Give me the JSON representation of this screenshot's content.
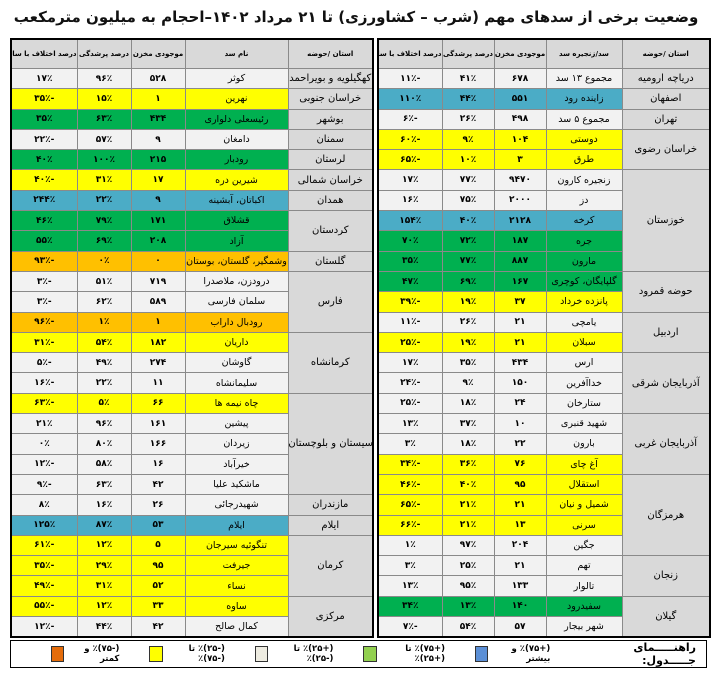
{
  "title": "وضعیت برخی از سدهای مهم (شرب – کشاورزی) تا ۲۱ مرداد ۱۴۰۲–احجام به میلیون مترمکعب",
  "right_table": {
    "headers": [
      "استان /حوضه",
      "سد/زنجیره سد",
      "موجودی مخزن",
      "درصد پرشدگی",
      "درصد اختلاف با سال قبل"
    ],
    "groups": [
      {
        "province": "دریاچه ارومیه",
        "rows": [
          {
            "dam": "مجموع ۱۳ سد",
            "volume": "۶۷۸",
            "fill": "۴۱٪",
            "diff": "-۱۱٪",
            "color": "g"
          }
        ]
      },
      {
        "province": "اصفهان",
        "rows": [
          {
            "dam": "زاینده رود",
            "volume": "۵۵۱",
            "fill": "۴۴٪",
            "diff": "۱۱۰٪",
            "color": "b"
          }
        ]
      },
      {
        "province": "تهران",
        "rows": [
          {
            "dam": "مجموع ۵ سد",
            "volume": "۴۹۸",
            "fill": "۲۶٪",
            "diff": "-۶٪",
            "color": "g"
          }
        ]
      },
      {
        "province": "خراسان رضوی",
        "rows": [
          {
            "dam": "دوستی",
            "volume": "۱۰۴",
            "fill": "۹٪",
            "diff": "-۶۰٪",
            "color": "y"
          },
          {
            "dam": "طرق",
            "volume": "۳",
            "fill": "۱۰٪",
            "diff": "-۶۵٪",
            "color": "y"
          }
        ]
      },
      {
        "province": "خوزستان",
        "rows": [
          {
            "dam": "زنجیره کارون",
            "volume": "۹۴۷۰",
            "fill": "۷۷٪",
            "diff": "۱۷٪",
            "color": "g"
          },
          {
            "dam": "دز",
            "volume": "۲۰۰۰",
            "fill": "۷۵٪",
            "diff": "۱۶٪",
            "color": "g"
          },
          {
            "dam": "کرخه",
            "volume": "۲۱۲۸",
            "fill": "۴۰٪",
            "diff": "۱۵۴٪",
            "color": "b"
          },
          {
            "dam": "جره",
            "volume": "۱۸۷",
            "fill": "۷۲٪",
            "diff": "۷۰٪",
            "color": "gr"
          },
          {
            "dam": "مارون",
            "volume": "۸۸۷",
            "fill": "۷۷٪",
            "diff": "۳۵٪",
            "color": "gr"
          }
        ]
      },
      {
        "province": "حوضه قمرود",
        "rows": [
          {
            "dam": "گلپایگان، کوچری",
            "volume": "۱۶۷",
            "fill": "۶۹٪",
            "diff": "۴۷٪",
            "color": "gr"
          },
          {
            "dam": "پانزده خرداد",
            "volume": "۳۷",
            "fill": "۱۹٪",
            "diff": "-۳۹٪",
            "color": "y"
          }
        ]
      },
      {
        "province": "اردبیل",
        "rows": [
          {
            "dam": "یامچی",
            "volume": "۲۱",
            "fill": "۲۶٪",
            "diff": "-۱۱٪",
            "color": "g"
          },
          {
            "dam": "سبلان",
            "volume": "۲۱",
            "fill": "۱۹٪",
            "diff": "-۲۵٪",
            "color": "y"
          }
        ]
      },
      {
        "province": "آذربایجان شرقی",
        "rows": [
          {
            "dam": "ارس",
            "volume": "۴۳۴",
            "fill": "۳۵٪",
            "diff": "۱۷٪",
            "color": "g"
          },
          {
            "dam": "خداآفرین",
            "volume": "۱۵۰",
            "fill": "۹٪",
            "diff": "-۲۴٪",
            "color": "g"
          },
          {
            "dam": "ستارخان",
            "volume": "۲۴",
            "fill": "۱۸٪",
            "diff": "-۲۵٪",
            "color": "g"
          }
        ]
      },
      {
        "province": "آذربایجان غربی",
        "rows": [
          {
            "dam": "شهید قنبری",
            "volume": "۱۰",
            "fill": "۳۷٪",
            "diff": "۱۳٪",
            "color": "g"
          },
          {
            "dam": "بارون",
            "volume": "۲۲",
            "fill": "۱۸٪",
            "diff": "۳٪",
            "color": "g"
          },
          {
            "dam": "آغ چای",
            "volume": "۷۶",
            "fill": "۳۶٪",
            "diff": "-۳۴٪",
            "color": "y"
          }
        ]
      },
      {
        "province": "هرمزگان",
        "rows": [
          {
            "dam": "استقلال",
            "volume": "۹۵",
            "fill": "۴۰٪",
            "diff": "-۴۶٪",
            "color": "y"
          },
          {
            "dam": "شمیل و نیان",
            "volume": "۲۱",
            "fill": "۲۱٪",
            "diff": "-۶۵٪",
            "color": "y"
          },
          {
            "dam": "سرنی",
            "volume": "۱۳",
            "fill": "۲۱٪",
            "diff": "-۶۶٪",
            "color": "y"
          },
          {
            "dam": "جگین",
            "volume": "۲۰۴",
            "fill": "۹۷٪",
            "diff": "۱٪",
            "color": "g"
          }
        ]
      },
      {
        "province": "زنجان",
        "rows": [
          {
            "dam": "تهم",
            "volume": "۲۱",
            "fill": "۲۵٪",
            "diff": "۳٪",
            "color": "g"
          },
          {
            "dam": "تالوار",
            "volume": "۱۳۳",
            "fill": "۹۵٪",
            "diff": "۱۳٪",
            "color": "g"
          }
        ]
      },
      {
        "province": "گیلان",
        "rows": [
          {
            "dam": "سفیدرود",
            "volume": "۱۴۰",
            "fill": "۱۳٪",
            "diff": "۳۴٪",
            "color": "gr"
          },
          {
            "dam": "شهر بیجار",
            "volume": "۵۷",
            "fill": "۵۴٪",
            "diff": "-۷٪",
            "color": "g"
          }
        ]
      }
    ]
  },
  "left_table": {
    "headers": [
      "استان /حوضه",
      "نام سد",
      "موجودی مخزن",
      "درصد پرشدگی",
      "درصد اختلاف با سال قبل"
    ],
    "groups": [
      {
        "province": "کهگیلویه و بویراحمد",
        "rows": [
          {
            "dam": "کوثر",
            "volume": "۵۲۸",
            "fill": "۹۶٪",
            "diff": "۱۷٪",
            "color": "g"
          }
        ]
      },
      {
        "province": "خراسان جنوبی",
        "rows": [
          {
            "dam": "نهرین",
            "volume": "۱",
            "fill": "۱۵٪",
            "diff": "-۳۵٪",
            "color": "y"
          }
        ]
      },
      {
        "province": "بوشهر",
        "rows": [
          {
            "dam": "رئیسعلی دلواری",
            "volume": "۴۳۴",
            "fill": "۶۳٪",
            "diff": "۳۵٪",
            "color": "gr"
          }
        ]
      },
      {
        "province": "سمنان",
        "rows": [
          {
            "dam": "دامغان",
            "volume": "۹",
            "fill": "۵۷٪",
            "diff": "-۲۲٪",
            "color": "g"
          }
        ]
      },
      {
        "province": "لرستان",
        "rows": [
          {
            "dam": "رودبار",
            "volume": "۲۱۵",
            "fill": "۱۰۰٪",
            "diff": "۴۰٪",
            "color": "gr"
          }
        ]
      },
      {
        "province": "خراسان شمالی",
        "rows": [
          {
            "dam": "شیرین دره",
            "volume": "۱۷",
            "fill": "۳۱٪",
            "diff": "-۴۰٪",
            "color": "y"
          }
        ]
      },
      {
        "province": "همدان",
        "rows": [
          {
            "dam": "اکباتان، آبشینه",
            "volume": "۹",
            "fill": "۲۲٪",
            "diff": "۲۴۴٪",
            "color": "b"
          }
        ]
      },
      {
        "province": "کردستان",
        "rows": [
          {
            "dam": "قشلاق",
            "volume": "۱۷۱",
            "fill": "۷۹٪",
            "diff": "۴۶٪",
            "color": "gr"
          },
          {
            "dam": "آزاد",
            "volume": "۲۰۸",
            "fill": "۶۹٪",
            "diff": "۵۵٪",
            "color": "gr"
          }
        ]
      },
      {
        "province": "گلستان",
        "rows": [
          {
            "dam": "وشمگیر، گلستان، بوستان",
            "volume": "۰",
            "fill": "۰٪",
            "diff": "-۹۳٪",
            "color": "o"
          }
        ]
      },
      {
        "province": "فارس",
        "rows": [
          {
            "dam": "درودزن، ملاصدرا",
            "volume": "۷۱۹",
            "fill": "۵۱٪",
            "diff": "-۳٪",
            "color": "g"
          },
          {
            "dam": "سلمان فارسی",
            "volume": "۵۸۹",
            "fill": "۶۲٪",
            "diff": "-۳٪",
            "color": "g"
          },
          {
            "dam": "رودبال داراب",
            "volume": "۱",
            "fill": "۱٪",
            "diff": "-۹۶٪",
            "color": "o"
          }
        ]
      },
      {
        "province": "کرمانشاه",
        "rows": [
          {
            "dam": "داریان",
            "volume": "۱۸۲",
            "fill": "۵۴٪",
            "diff": "-۳۱٪",
            "color": "y"
          },
          {
            "dam": "گاوشان",
            "volume": "۲۷۴",
            "fill": "۴۹٪",
            "diff": "-۵٪",
            "color": "g"
          },
          {
            "dam": "سلیمانشاه",
            "volume": "۱۱",
            "fill": "۲۲٪",
            "diff": "-۱۶٪",
            "color": "g"
          }
        ]
      },
      {
        "province": "سیستان و بلوچستان",
        "rows": [
          {
            "dam": "چاه نیمه ها",
            "volume": "۶۶",
            "fill": "۵٪",
            "diff": "-۶۳٪",
            "color": "y"
          },
          {
            "dam": "پیشین",
            "volume": "۱۶۱",
            "fill": "۹۶٪",
            "diff": "۲۱٪",
            "color": "g"
          },
          {
            "dam": "زیردان",
            "volume": "۱۶۶",
            "fill": "۸۰٪",
            "diff": "۰٪",
            "color": "g"
          },
          {
            "dam": "خیرآباد",
            "volume": "۱۶",
            "fill": "۵۸٪",
            "diff": "-۱۲٪",
            "color": "g"
          },
          {
            "dam": "ماشکید علیا",
            "volume": "۴۲",
            "fill": "۶۳٪",
            "diff": "-۹٪",
            "color": "g"
          }
        ]
      },
      {
        "province": "مازندران",
        "rows": [
          {
            "dam": "شهیدرجائی",
            "volume": "۲۶",
            "fill": "۱۶٪",
            "diff": "۸٪",
            "color": "g"
          }
        ]
      },
      {
        "province": "ایلام",
        "rows": [
          {
            "dam": "ایلام",
            "volume": "۵۳",
            "fill": "۸۷٪",
            "diff": "۱۲۵٪",
            "color": "b"
          }
        ]
      },
      {
        "province": "کرمان",
        "rows": [
          {
            "dam": "تنگوئیه سیرجان",
            "volume": "۵",
            "fill": "۱۲٪",
            "diff": "-۶۱٪",
            "color": "y"
          },
          {
            "dam": "جیرفت",
            "volume": "۹۵",
            "fill": "۲۹٪",
            "diff": "-۳۵٪",
            "color": "y"
          },
          {
            "dam": "نساء",
            "volume": "۵۲",
            "fill": "۳۱٪",
            "diff": "-۴۹٪",
            "color": "y"
          }
        ]
      },
      {
        "province": "مرکزی",
        "rows": [
          {
            "dam": "ساوه",
            "volume": "۳۳",
            "fill": "۱۲٪",
            "diff": "-۵۵٪",
            "color": "y"
          },
          {
            "dam": "کمال صالح",
            "volume": "۴۲",
            "fill": "۴۴٪",
            "diff": "-۱۲٪",
            "color": "g"
          }
        ]
      }
    ]
  },
  "legend": {
    "label": "راهنـــــمای جـــــدول:",
    "items": [
      {
        "text": "(+۷۵)٪ و بیشتر",
        "color": "#5b8fd6"
      },
      {
        "text": "(+۷۵)٪ تا (+۲۵)٪",
        "color": "#92d050"
      },
      {
        "text": "(+۲۵)٪ تا (-۲۵)٪",
        "color": "#eeece1"
      },
      {
        "text": "(-۲۵)٪ تا (-۷۵)٪",
        "color": "#ffff00"
      },
      {
        "text": "(-۷۵)٪ و کمتر",
        "color": "#e46c0a"
      }
    ]
  }
}
